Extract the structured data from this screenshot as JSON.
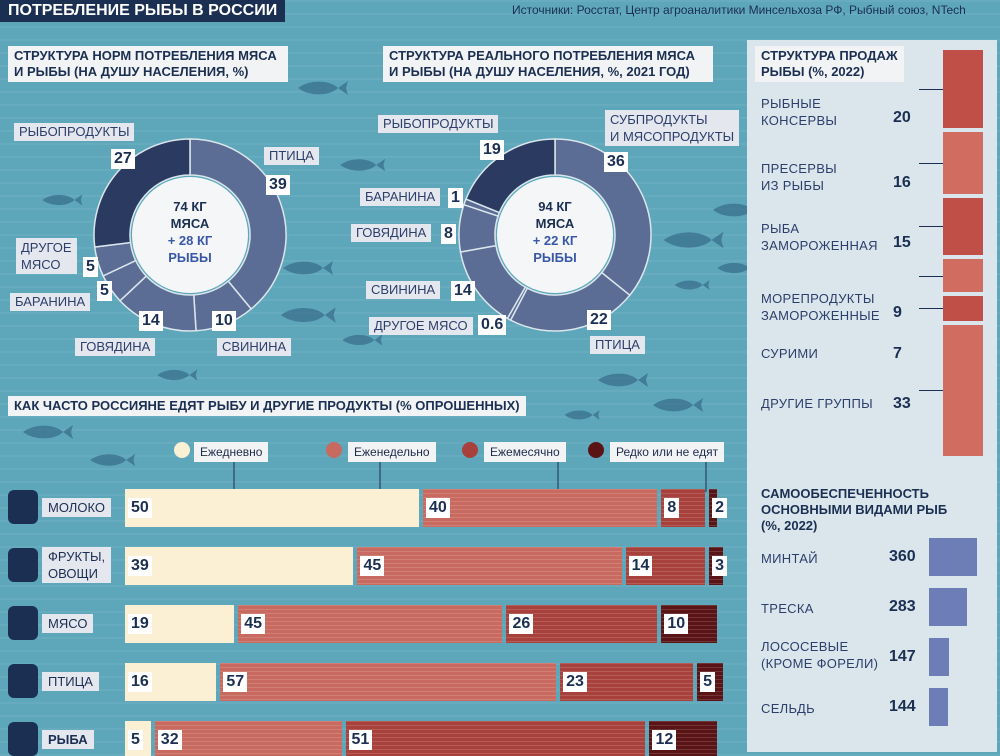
{
  "header": {
    "title": "ПОТРЕБЛЕНИЕ РЫБЫ В РОССИИ",
    "sources": "Источники: Росстат, Центр агроаналитики Минсельхоза РФ, Рыбный союз, NTech"
  },
  "colors": {
    "navy": "#1b2f52",
    "donut_dark": "#2b3a61",
    "donut_light": "#5b6d94",
    "freq_daily": "#fbf0d4",
    "freq_weekly": "#c86a5f",
    "freq_monthly": "#a8413b",
    "freq_rare": "#5a1416",
    "sales_bar": "#c35a50",
    "self_bar": "#6d7eb6"
  },
  "chart_data": [
    {
      "type": "pie",
      "title": "СТРУКТУРА НОРМ ПОТРЕБЛЕНИЯ МЯСА И РЫБЫ (НА ДУШУ НАСЕЛЕНИЯ, %)",
      "center_line1": "74 КГ",
      "center_line2": "МЯСА",
      "center_line3": "+ 28 КГ",
      "center_line4": "РЫБЫ",
      "slices": [
        {
          "label": "ПТИЦА",
          "value": 39
        },
        {
          "label": "СВИНИНА",
          "value": 10
        },
        {
          "label": "ГОВЯДИНА",
          "value": 14
        },
        {
          "label": "БАРАНИНА",
          "value": 5
        },
        {
          "label": "ДРУГОЕ МЯСО",
          "value": 5
        },
        {
          "label": "РЫБОПРОДУКТЫ",
          "value": 27
        }
      ]
    },
    {
      "type": "pie",
      "title": "СТРУКТУРА РЕАЛЬНОГО ПОТРЕБЛЕНИЯ МЯСА И РЫБЫ (НА ДУШУ НАСЕЛЕНИЯ, %, 2021 ГОД)",
      "center_line1": "94 КГ",
      "center_line2": "МЯСА",
      "center_line3": "+ 22 КГ",
      "center_line4": "РЫБЫ",
      "slices": [
        {
          "label": "СУБПРОДУКТЫ И МЯСОПРОДУКТЫ",
          "value": 36
        },
        {
          "label": "ПТИЦА",
          "value": 22
        },
        {
          "label": "ДРУГОЕ МЯСО",
          "value": 0.6
        },
        {
          "label": "СВИНИНА",
          "value": 14
        },
        {
          "label": "ГОВЯДИНА",
          "value": 8
        },
        {
          "label": "БАРАНИНА",
          "value": 1
        },
        {
          "label": "РЫБОПРОДУКТЫ",
          "value": 19
        }
      ]
    },
    {
      "type": "bar",
      "title": "СТРУКТУРА ПРОДАЖ РЫБЫ (%, 2022)",
      "categories": [
        "РЫБНЫЕ КОНСЕРВЫ",
        "ПРЕСЕРВЫ ИЗ РЫБЫ",
        "РЫБА ЗАМОРОЖЕННАЯ",
        "МОРЕПРОДУКТЫ ЗАМОРОЖЕННЫЕ",
        "СУРИМИ",
        "ДРУГИЕ ГРУППЫ"
      ],
      "values": [
        20,
        16,
        15,
        9,
        7,
        33
      ]
    },
    {
      "type": "bar",
      "title": "КАК ЧАСТО РОССИЯНЕ ЕДЯТ РЫБУ И ДРУГИЕ ПРОДУКТЫ (% ОПРОШЕННЫХ)",
      "categories": [
        "МОЛОКО",
        "ФРУКТЫ, ОВОЩИ",
        "МЯСО",
        "ПТИЦА",
        "РЫБА"
      ],
      "series": [
        {
          "name": "Ежедневно",
          "values": [
            50,
            39,
            19,
            16,
            5
          ]
        },
        {
          "name": "Еженедельно",
          "values": [
            40,
            45,
            45,
            57,
            32
          ]
        },
        {
          "name": "Ежемесячно",
          "values": [
            8,
            14,
            26,
            23,
            51
          ]
        },
        {
          "name": "Редко или не едят",
          "values": [
            2,
            3,
            10,
            5,
            12
          ]
        }
      ]
    },
    {
      "type": "bar",
      "title": "САМООБЕСПЕЧЕННОСТЬ ОСНОВНЫМИ ВИДАМИ РЫБ (%, 2022)",
      "categories": [
        "МИНТАЙ",
        "ТРЕСКА",
        "ЛОСОСЕВЫЕ (КРОМЕ ФОРЕЛИ)",
        "СЕЛЬДЬ"
      ],
      "values": [
        360,
        283,
        147,
        144
      ]
    }
  ],
  "donut1": {
    "title_l1": "СТРУКТУРА НОРМ ПОТРЕБЛЕНИЯ МЯСА",
    "title_l2": "И РЫБЫ (НА ДУШУ НАСЕЛЕНИЯ, %)"
  },
  "donut2": {
    "title_l1": "СТРУКТУРА РЕАЛЬНОГО ПОТРЕБЛЕНИЯ МЯСА",
    "title_l2": "И РЫБЫ (НА ДУШУ НАСЕЛЕНИЯ, %, 2021 ГОД)",
    "label_subproducts_l1": "СУБПРОДУКТЫ",
    "label_subproducts_l2": "И МЯСОПРОДУКТЫ"
  },
  "sales": {
    "title_l1": "СТРУКТУРА ПРОДАЖ",
    "title_l2": "РЫБЫ (%, 2022)",
    "labels": [
      [
        "РЫБНЫЕ",
        "КОНСЕРВЫ"
      ],
      [
        "ПРЕСЕРВЫ",
        "ИЗ РЫБЫ"
      ],
      [
        "РЫБА",
        "ЗАМОРОЖЕННАЯ"
      ],
      [
        "МОРЕПРОДУКТЫ",
        "ЗАМОРОЖЕННЫЕ"
      ],
      [
        "СУРИМИ"
      ],
      [
        "ДРУГИЕ ГРУППЫ"
      ]
    ]
  },
  "freq": {
    "title": "КАК ЧАСТО РОССИЯНЕ ЕДЯТ РЫБУ И ДРУГИЕ ПРОДУКТЫ (% ОПРОШЕННЫХ)",
    "row_labels": [
      [
        "МОЛОКО"
      ],
      [
        "ФРУКТЫ,",
        "ОВОЩИ"
      ],
      [
        "МЯСО"
      ],
      [
        "ПТИЦА"
      ],
      [
        "РЫБА"
      ]
    ]
  },
  "self": {
    "title_l1": "САМООБЕСПЕЧЕННОСТЬ",
    "title_l2": "ОСНОВНЫМИ ВИДАМИ РЫБ",
    "title_l3": "(%, 2022)",
    "labels": [
      [
        "МИНТАЙ"
      ],
      [
        "ТРЕСКА"
      ],
      [
        "ЛОСОСЕВЫЕ",
        "(КРОМЕ ФОРЕЛИ)"
      ],
      [
        "СЕЛЬДЬ"
      ]
    ]
  }
}
